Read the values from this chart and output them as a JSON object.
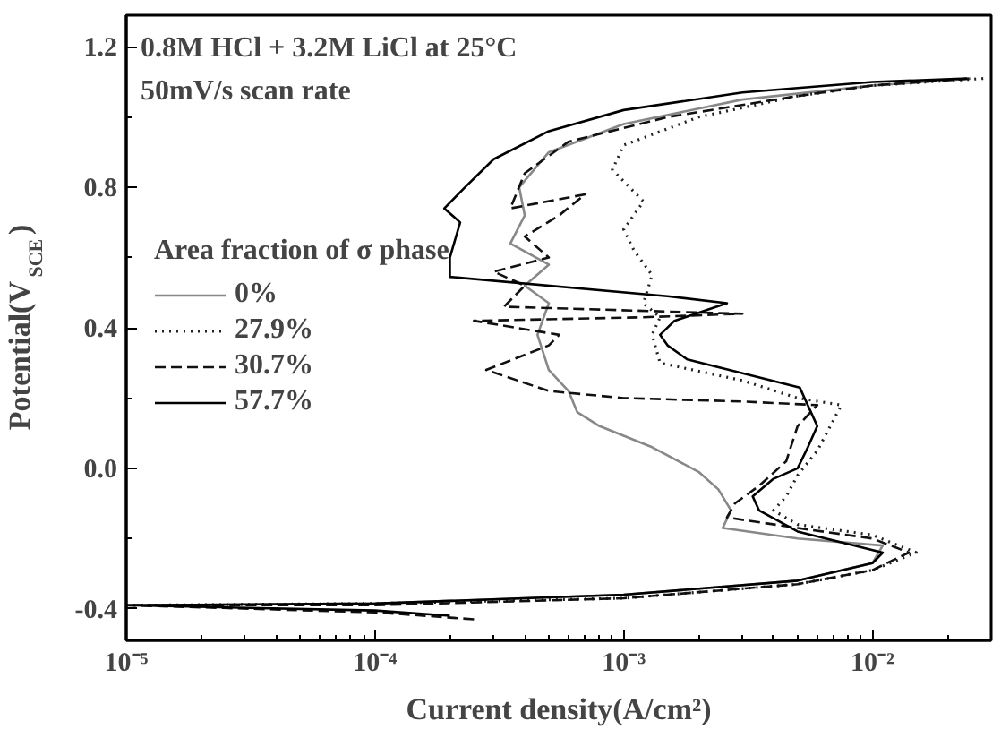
{
  "chart_data": {
    "type": "line",
    "xlabel": "Current density(A/cm²)",
    "ylabel": "Potential(V$_{SCE}$)",
    "legend_title": "Area fraction of σ phase",
    "annotations": [
      "0.8M HCl + 3.2M LiCl at 25°C",
      "50mV/s scan rate"
    ],
    "log": "x",
    "grid": false,
    "legend": "left",
    "marker": "none",
    "xlim": [
      1e-05,
      0.03
    ],
    "ylim": [
      -0.49,
      1.29
    ],
    "xticks": [
      {
        "value": 1e-05,
        "label": "10⁻⁵"
      },
      {
        "value": 0.0001,
        "label": "10⁻⁴"
      },
      {
        "value": 0.001,
        "label": "10⁻³"
      },
      {
        "value": 0.01,
        "label": "10⁻²"
      }
    ],
    "yticks": [
      {
        "value": -0.4,
        "label": "-0.4"
      },
      {
        "value": 0,
        "label": "0.0"
      },
      {
        "value": 0.4,
        "label": "0.4"
      },
      {
        "value": 0.8,
        "label": "0.8"
      },
      {
        "value": 1.2,
        "label": "1.2"
      }
    ],
    "series": [
      {
        "name": "0%",
        "color": "#888888",
        "line_style": "solid",
        "x": [
          1e-05,
          0.0001,
          0.001,
          0.005,
          0.01,
          0.011,
          0.005,
          0.0025,
          0.0027,
          0.0024,
          0.002,
          0.0013,
          0.0008,
          0.00065,
          0.0006,
          0.0005,
          0.00045,
          0.0005,
          0.0004,
          0.0005,
          0.00035,
          0.0004,
          0.00038,
          0.0005,
          0.001,
          0.003,
          0.01,
          0.025
        ],
        "values": [
          -0.39,
          -0.385,
          -0.36,
          -0.32,
          -0.27,
          -0.22,
          -0.2,
          -0.17,
          -0.12,
          -0.06,
          -0.01,
          0.06,
          0.12,
          0.16,
          0.22,
          0.28,
          0.38,
          0.47,
          0.52,
          0.58,
          0.64,
          0.72,
          0.8,
          0.9,
          0.98,
          1.05,
          1.09,
          1.11
        ]
      },
      {
        "name": "27.9%",
        "color": "#222222",
        "line_style": "dotted",
        "x": [
          1e-05,
          0.0001,
          0.001,
          0.005,
          0.01,
          0.015,
          0.01,
          0.005,
          0.004,
          0.0045,
          0.005,
          0.006,
          0.0075,
          0.005,
          0.003,
          0.0014,
          0.0013,
          0.0014,
          0.0012,
          0.0013,
          0.0011,
          0.001,
          0.0012,
          0.0009,
          0.001,
          0.002,
          0.005,
          0.01,
          0.028
        ],
        "values": [
          -0.39,
          -0.385,
          -0.37,
          -0.33,
          -0.29,
          -0.24,
          -0.19,
          -0.16,
          -0.12,
          -0.08,
          -0.02,
          0.05,
          0.18,
          0.2,
          0.25,
          0.3,
          0.38,
          0.43,
          0.47,
          0.55,
          0.62,
          0.68,
          0.76,
          0.85,
          0.92,
          1.0,
          1.06,
          1.09,
          1.11
        ]
      },
      {
        "name": "30.7%",
        "color": "#111111",
        "line_style": "dashed",
        "x": [
          0.00025,
          0.0001,
          1e-05,
          0.0001,
          0.001,
          0.005,
          0.01,
          0.014,
          0.01,
          0.005,
          0.0026,
          0.0028,
          0.0035,
          0.0045,
          0.005,
          0.006,
          0.003,
          0.001,
          0.0005,
          0.00028,
          0.0005,
          0.00055,
          0.00025,
          0.0012,
          0.003,
          0.00033,
          0.0004,
          0.0003,
          0.0005,
          0.0004,
          0.00055,
          0.0007,
          0.00035,
          0.0004,
          0.0006,
          0.0015,
          0.005,
          0.01,
          0.025
        ],
        "values": [
          -0.43,
          -0.41,
          -0.39,
          -0.39,
          -0.37,
          -0.33,
          -0.29,
          -0.24,
          -0.2,
          -0.17,
          -0.14,
          -0.1,
          -0.05,
          0.02,
          0.12,
          0.18,
          0.19,
          0.2,
          0.22,
          0.28,
          0.35,
          0.38,
          0.42,
          0.43,
          0.44,
          0.46,
          0.52,
          0.56,
          0.6,
          0.66,
          0.72,
          0.78,
          0.74,
          0.84,
          0.93,
          1.0,
          1.06,
          1.09,
          1.11
        ]
      },
      {
        "name": "57.7%",
        "color": "#000000",
        "line_style": "solid",
        "x": [
          0.0002,
          0.0001,
          1e-05,
          0.0001,
          0.001,
          0.005,
          0.01,
          0.011,
          0.005,
          0.0035,
          0.0033,
          0.004,
          0.005,
          0.0055,
          0.006,
          0.0051,
          0.0018,
          0.0015,
          0.0014,
          0.0016,
          0.0026,
          0.0015,
          0.0002,
          0.0002,
          0.00022,
          0.00019,
          0.00023,
          0.0003,
          0.0005,
          0.001,
          0.003,
          0.01,
          0.024
        ],
        "values": [
          -0.42,
          -0.405,
          -0.39,
          -0.385,
          -0.36,
          -0.32,
          -0.27,
          -0.24,
          -0.18,
          -0.12,
          -0.08,
          -0.03,
          0.0,
          0.06,
          0.12,
          0.23,
          0.31,
          0.35,
          0.38,
          0.42,
          0.47,
          0.49,
          0.545,
          0.6,
          0.7,
          0.74,
          0.8,
          0.88,
          0.96,
          1.02,
          1.07,
          1.1,
          1.11
        ]
      }
    ]
  }
}
